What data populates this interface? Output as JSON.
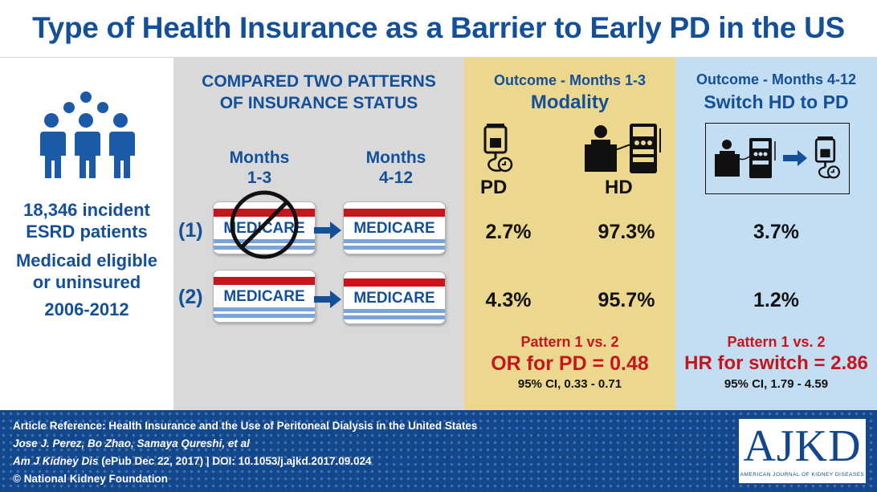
{
  "title": "Type of Health Insurance as a Barrier to Early PD in the US",
  "left": {
    "icon": "group-of-people-icon",
    "line1": "18,346 incident",
    "line2": "ESRD patients",
    "line3": "Medicaid eligible",
    "line4": "or uninsured",
    "line5": "2006-2012"
  },
  "middle": {
    "heading1": "COMPARED TWO PATTERNS",
    "heading2": "OF INSURANCE STATUS",
    "months_a1": "Months",
    "months_a2": "1-3",
    "months_b1": "Months",
    "months_b2": "4-12",
    "pattern1_label": "(1)",
    "pattern2_label": "(2)",
    "card_text": "MEDICARE",
    "no_symbol": "prohibited-icon"
  },
  "modality": {
    "heading1": "Outcome - Months 1-3",
    "heading2": "Modality",
    "pd_label": "PD",
    "hd_label": "HD",
    "pd_icon": "iv-bag-icon",
    "hd_icon": "dialysis-machine-icon",
    "row1_pd": "2.7%",
    "row1_hd": "97.3%",
    "row2_pd": "4.3%",
    "row2_hd": "95.7%",
    "compare": "Pattern 1 vs. 2",
    "stat": "OR for PD = 0.48",
    "ci": "95% CI, 0.33 - 0.71"
  },
  "switch": {
    "heading1": "Outcome - Months 4-12",
    "heading2": "Switch HD to PD",
    "row1": "3.7%",
    "row2": "1.2%",
    "compare": "Pattern 1 vs. 2",
    "stat": "HR for switch = 2.86",
    "ci": "95% CI, 1.79 - 4.59"
  },
  "footer": {
    "line1": "Article Reference: Health Insurance and the Use of Peritoneal Dialysis in the United States",
    "line2": "Jose J. Perez, Bo Zhao, Samaya Qureshi, et al",
    "line3_journal": "Am J Kidney Dis",
    "line3_rest": " (ePub Dec 22, 2017) | DOI: 10.1053/j.ajkd.2017.09.024",
    "line4": "© National Kidney Foundation"
  },
  "logo": {
    "main": "AJKD",
    "sub": "AMERICAN JOURNAL OF KIDNEY DISEASES"
  },
  "colors": {
    "title_blue": "#14509a",
    "accent_red": "#c5161d",
    "panel_gray": "#d9d9d9",
    "panel_yellow": "#ecd78f",
    "panel_blue": "#c3ddf2",
    "footer_blue": "#12468d"
  }
}
